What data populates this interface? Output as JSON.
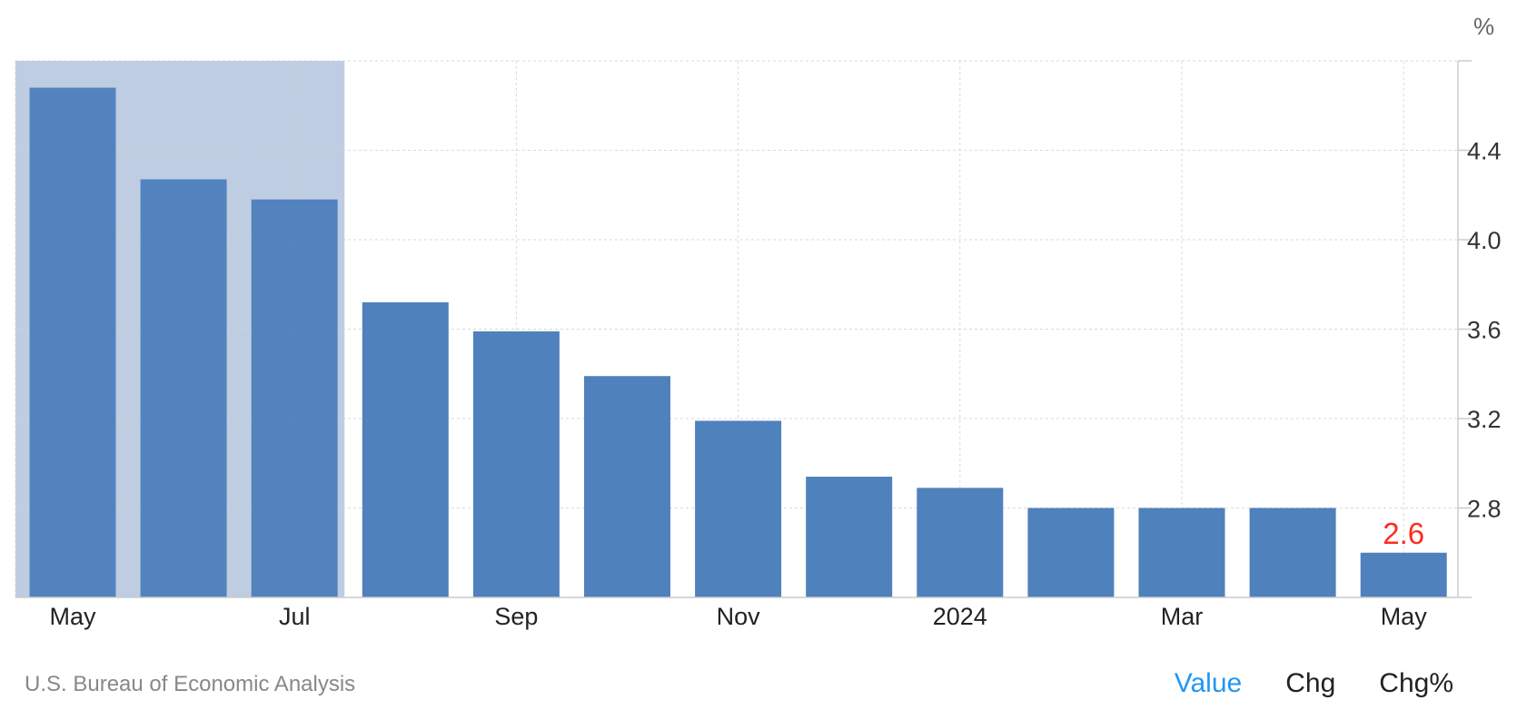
{
  "chart_data": {
    "type": "bar",
    "categories": [
      "May 2023",
      "Jun 2023",
      "Jul 2023",
      "Aug 2023",
      "Sep 2023",
      "Oct 2023",
      "Nov 2023",
      "Dec 2023",
      "Jan 2024",
      "Feb 2024",
      "Mar 2024",
      "Apr 2024",
      "May 2024"
    ],
    "values": [
      4.68,
      4.27,
      4.18,
      3.72,
      3.59,
      3.39,
      3.19,
      2.94,
      2.89,
      2.8,
      2.8,
      2.8,
      2.6
    ],
    "x_tick_labels": [
      "May",
      "Jul",
      "Sep",
      "Nov",
      "2024",
      "Mar",
      "May"
    ],
    "y_ticks": [
      "2.8",
      "3.2",
      "3.6",
      "4.0",
      "4.4"
    ],
    "y_unit": "%",
    "ylim": [
      2.4,
      4.8
    ],
    "last_value_label": "2.6",
    "highlighted_range": [
      "May 2023",
      "Jul 2023"
    ],
    "grid": true,
    "colors": {
      "bar": "#4f81bd",
      "highlight": "#c9d5e7",
      "last_label": "#ff2a1f"
    }
  },
  "footer": {
    "source": "U.S. Bureau of Economic Analysis",
    "tabs": {
      "value": "Value",
      "chg": "Chg",
      "chg_pct": "Chg%"
    }
  }
}
